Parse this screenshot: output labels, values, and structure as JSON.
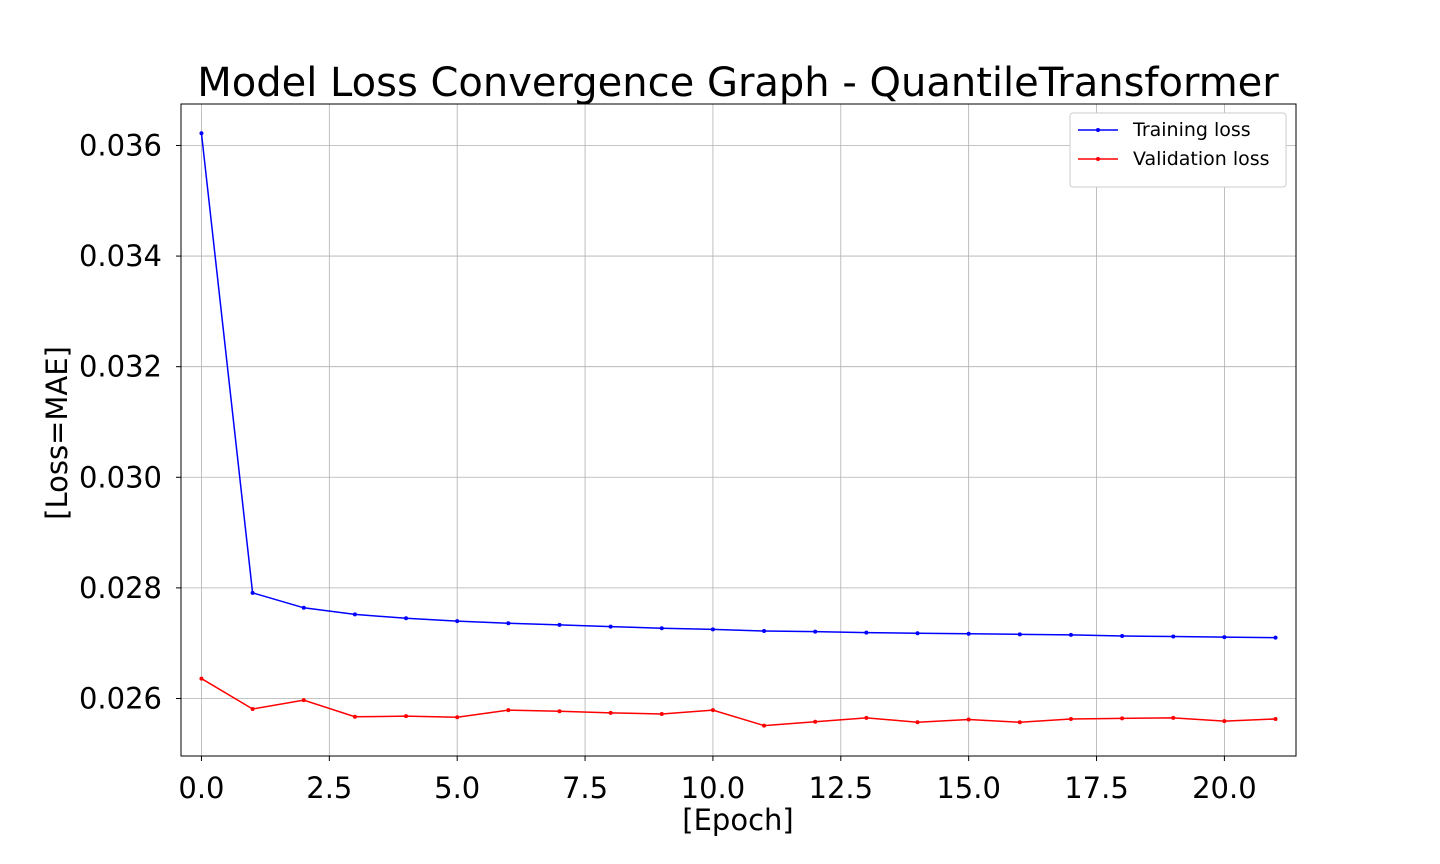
{
  "chart_data": {
    "type": "line",
    "title": "Model Loss Convergence Graph - QuantileTransformer",
    "xlabel": "[Epoch]",
    "ylabel": "[Loss=MAE]",
    "xlim": [
      -0.4,
      21.4
    ],
    "ylim": [
      0.02496,
      0.03675
    ],
    "xticks": [
      0.0,
      2.5,
      5.0,
      7.5,
      10.0,
      12.5,
      15.0,
      17.5,
      20.0
    ],
    "xtick_labels": [
      "0.0",
      "2.5",
      "5.0",
      "7.5",
      "10.0",
      "12.5",
      "15.0",
      "17.5",
      "20.0"
    ],
    "yticks": [
      0.026,
      0.028,
      0.03,
      0.032,
      0.034,
      0.036
    ],
    "ytick_labels": [
      "0.026",
      "0.028",
      "0.030",
      "0.032",
      "0.034",
      "0.036"
    ],
    "grid": true,
    "legend_position": "top-right",
    "x": [
      0,
      1,
      2,
      3,
      4,
      5,
      6,
      7,
      8,
      9,
      10,
      11,
      12,
      13,
      14,
      15,
      16,
      17,
      18,
      19,
      20,
      21
    ],
    "series": [
      {
        "name": "Training loss",
        "color": "#0000ff",
        "values": [
          0.03622,
          0.02791,
          0.02764,
          0.02752,
          0.02745,
          0.0274,
          0.02736,
          0.02733,
          0.0273,
          0.02727,
          0.02725,
          0.02722,
          0.02721,
          0.02719,
          0.02718,
          0.02717,
          0.02716,
          0.02715,
          0.02713,
          0.02712,
          0.02711,
          0.0271
        ]
      },
      {
        "name": "Validation loss",
        "color": "#ff0000",
        "values": [
          0.02636,
          0.02581,
          0.02597,
          0.02567,
          0.02568,
          0.02566,
          0.02579,
          0.02577,
          0.02574,
          0.02572,
          0.02579,
          0.02551,
          0.02558,
          0.02565,
          0.02557,
          0.02562,
          0.02557,
          0.02563,
          0.02564,
          0.02565,
          0.02559,
          0.02563
        ]
      }
    ]
  }
}
